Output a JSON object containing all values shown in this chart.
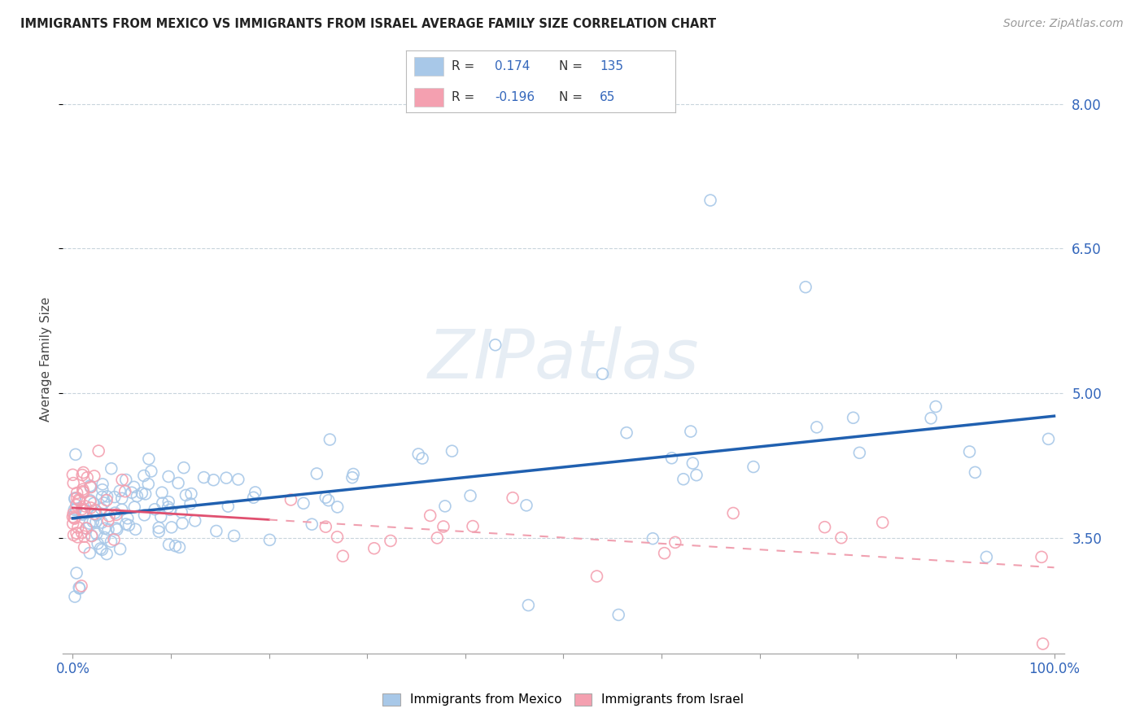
{
  "title": "IMMIGRANTS FROM MEXICO VS IMMIGRANTS FROM ISRAEL AVERAGE FAMILY SIZE CORRELATION CHART",
  "source": "Source: ZipAtlas.com",
  "ylabel": "Average Family Size",
  "y_ticks_right": [
    3.5,
    5.0,
    6.5,
    8.0
  ],
  "y_ticks_right_labels": [
    "3.50",
    "5.00",
    "6.50",
    "8.00"
  ],
  "legend_r_mexico": "0.174",
  "legend_n_mexico": "135",
  "legend_r_israel": "-0.196",
  "legend_n_israel": "65",
  "mexico_color": "#a8c8e8",
  "israel_color": "#f4a0b0",
  "mexico_line_color": "#2060b0",
  "israel_line_solid_color": "#e05070",
  "israel_line_dashed_color": "#f0a0b0",
  "watermark": "ZIPatlas",
  "background_color": "#ffffff",
  "ylim_low": 2.3,
  "ylim_high": 8.4,
  "xlim_low": -1,
  "xlim_high": 101
}
